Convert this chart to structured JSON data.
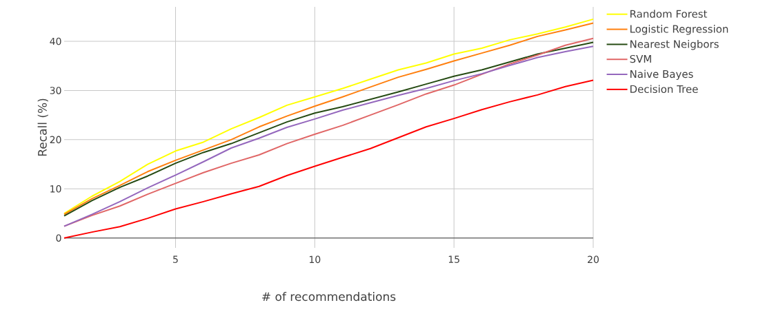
{
  "chart_data": {
    "type": "line",
    "xlabel": "# of recommendations",
    "ylabel": "Recall (%)",
    "x": [
      1,
      2,
      3,
      4,
      5,
      6,
      7,
      8,
      9,
      10,
      11,
      12,
      13,
      14,
      15,
      16,
      17,
      18,
      19,
      20
    ],
    "xlim": [
      1,
      20
    ],
    "xticks": [
      5,
      10,
      15,
      20
    ],
    "ylim": [
      -2,
      47
    ],
    "yticks": [
      0,
      10,
      20,
      30,
      40
    ],
    "grid": true,
    "legend": "top right",
    "marker": "none",
    "line_style": "solid",
    "series": [
      {
        "name": "Random Forest",
        "color": "#ffff00",
        "values": [
          5,
          8.5,
          11.5,
          15,
          17.7,
          19.5,
          22.2,
          24.5,
          27,
          28.7,
          30.4,
          32.3,
          34.2,
          35.6,
          37.4,
          38.6,
          40.3,
          41.5,
          42.9,
          44.5
        ]
      },
      {
        "name": "Logistic Regression",
        "color": "#ff7f0e",
        "values": [
          4.8,
          8,
          10.7,
          13.5,
          15.8,
          17.9,
          20,
          22.6,
          24.8,
          26.8,
          28.7,
          30.7,
          32.7,
          34.3,
          36,
          37.6,
          39.2,
          41,
          42.3,
          43.7
        ]
      },
      {
        "name": "Nearest Neigbors",
        "color": "#254a12",
        "values": [
          4.5,
          7.6,
          10.3,
          12.6,
          15.2,
          17.4,
          19.2,
          21.4,
          23.6,
          25.4,
          26.7,
          28.2,
          29.7,
          31.3,
          32.9,
          34.2,
          35.8,
          37.4,
          38.6,
          39.8
        ]
      },
      {
        "name": "SVM",
        "color": "#e06666",
        "values": [
          2.4,
          4.6,
          6.5,
          8.9,
          11.1,
          13.3,
          15.2,
          16.9,
          19.2,
          21.1,
          22.9,
          25,
          27.1,
          29.3,
          31.1,
          33.3,
          35.4,
          37.2,
          39.2,
          40.6
        ]
      },
      {
        "name": "Naive Bayes",
        "color": "#9467bd",
        "values": [
          2.4,
          4.8,
          7.4,
          10.2,
          12.8,
          15.5,
          18.3,
          20.3,
          22.5,
          24.2,
          26,
          27.5,
          29,
          30.4,
          32,
          33.4,
          35.1,
          36.7,
          37.9,
          39
        ]
      },
      {
        "name": "Decision Tree",
        "color": "#ff0000",
        "values": [
          0,
          1.2,
          2.3,
          4,
          5.9,
          7.4,
          9,
          10.5,
          12.7,
          14.6,
          16.4,
          18.2,
          20.4,
          22.6,
          24.3,
          26.1,
          27.7,
          29.1,
          30.8,
          32.1
        ]
      }
    ]
  }
}
